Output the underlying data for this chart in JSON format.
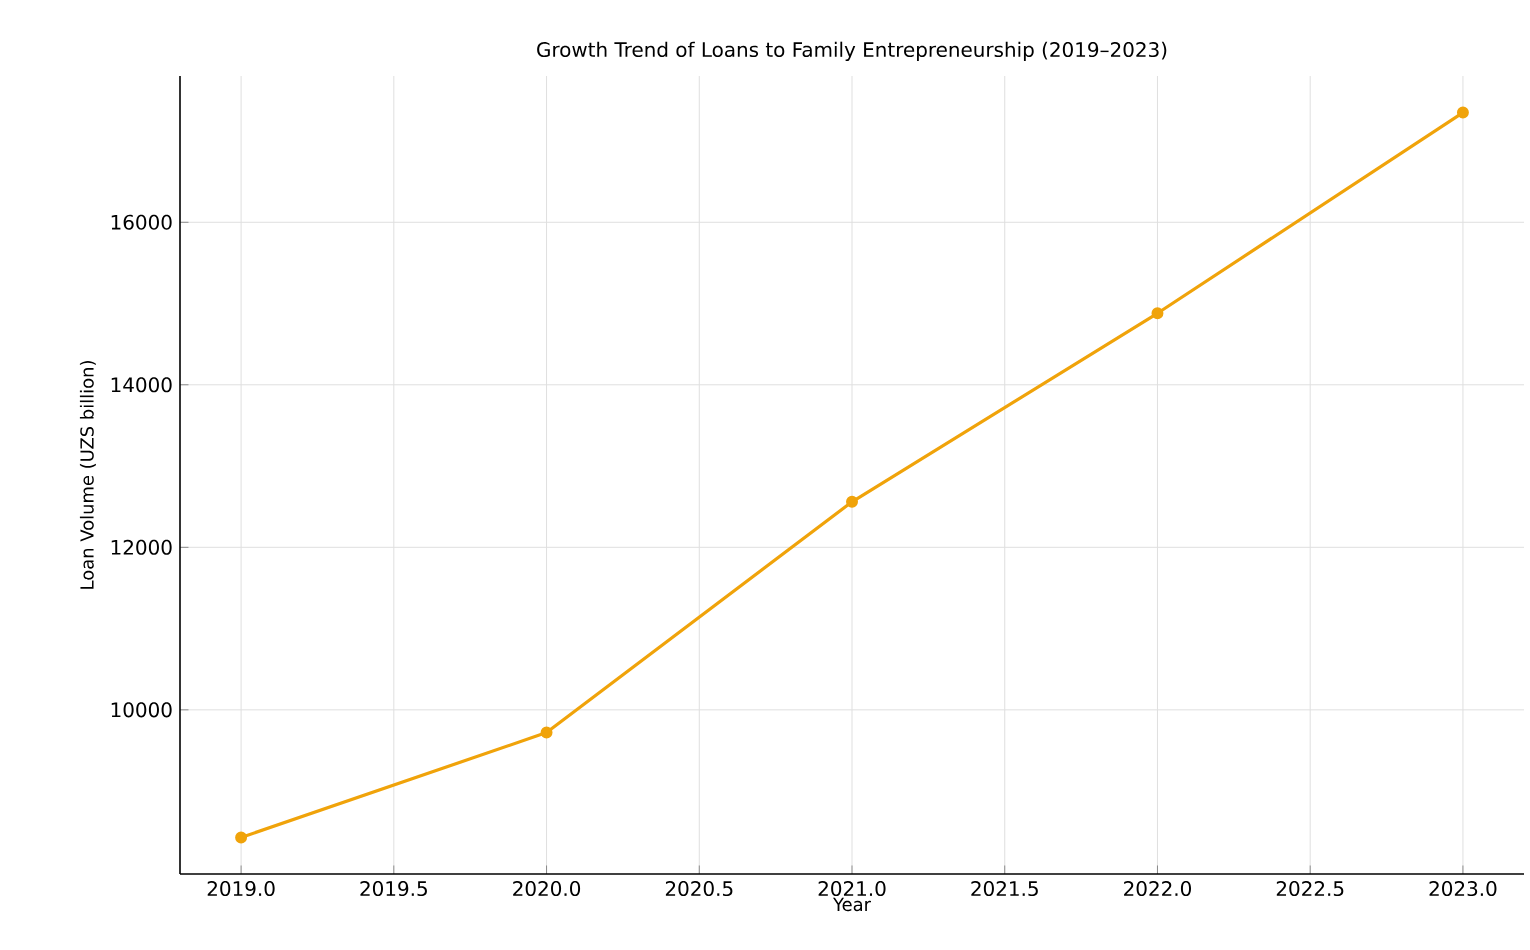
{
  "chart_data": {
    "type": "line",
    "title": "Growth Trend of Loans to Family Entrepreneurship (2019–2023)",
    "xlabel": "Year",
    "ylabel": "Loan Volume (UZS billion)",
    "x": [
      2019,
      2020,
      2021,
      2022,
      2023
    ],
    "series": [
      {
        "color": "#f0a30a",
        "values": [
          8430,
          9720,
          12560,
          14880,
          17350
        ]
      }
    ],
    "xlim": [
      2018.8,
      2023.2
    ],
    "ylim": [
      7980,
      17800
    ],
    "xticks": [
      {
        "value": 2019,
        "label": "2019.0"
      },
      {
        "value": 2019.5,
        "label": "2019.5"
      },
      {
        "value": 2020,
        "label": "2020.0"
      },
      {
        "value": 2020.5,
        "label": "2020.5"
      },
      {
        "value": 2021,
        "label": "2021.0"
      },
      {
        "value": 2021.5,
        "label": "2021.5"
      },
      {
        "value": 2022,
        "label": "2022.0"
      },
      {
        "value": 2022.5,
        "label": "2022.5"
      },
      {
        "value": 2023,
        "label": "2023.0"
      }
    ],
    "yticks": [
      10000,
      12000,
      14000,
      16000
    ],
    "grid": true,
    "marker": "circle",
    "line_style": "solid"
  }
}
